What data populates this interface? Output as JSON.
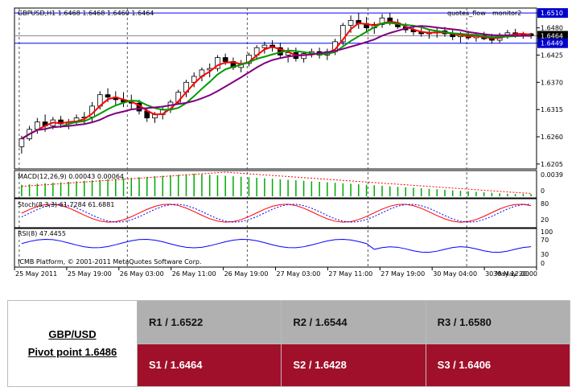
{
  "chart_data": {
    "type": "candlestick",
    "symbol_header": "GBPUSD,H1  1.6468 1.6468 1.6460 1.6464",
    "indicator_labels": [
      "quotes_flow",
      "monitor2"
    ],
    "watermark": "ICMB Platform, © 2001-2011 MetaQuotes Software Corp.",
    "ylim": [
      1.6195,
      1.652
    ],
    "y_ticks": [
      "1.6510",
      "1.6480",
      "1.6464",
      "1.6449",
      "1.6425",
      "1.6370",
      "1.6315",
      "1.6260",
      "1.6205"
    ],
    "y_tick_values": [
      1.651,
      1.648,
      1.6464,
      1.6449,
      1.6425,
      1.637,
      1.6315,
      1.626,
      1.6205
    ],
    "highlight_levels": [
      1.651,
      1.6449
    ],
    "current_price": 1.6464,
    "x_ticks": [
      "25 May 2011",
      "25 May 19:00",
      "26 May 03:00",
      "26 May 11:00",
      "26 May 19:00",
      "27 May 03:00",
      "27 May 11:00",
      "27 May 19:00",
      "30 May 04:00",
      "30 May 12:00",
      "30 May 20:00"
    ],
    "candles": [
      [
        1.624,
        1.6262,
        1.6226,
        1.6256
      ],
      [
        1.6256,
        1.6282,
        1.6252,
        1.6275
      ],
      [
        1.6275,
        1.6298,
        1.6266,
        1.629
      ],
      [
        1.629,
        1.6305,
        1.627,
        1.6282
      ],
      [
        1.6282,
        1.63,
        1.6275,
        1.6294
      ],
      [
        1.6294,
        1.6302,
        1.6278,
        1.6286
      ],
      [
        1.6286,
        1.6296,
        1.6275,
        1.6289
      ],
      [
        1.6289,
        1.6305,
        1.6283,
        1.6298
      ],
      [
        1.6298,
        1.631,
        1.6285,
        1.63
      ],
      [
        1.63,
        1.633,
        1.629,
        1.6322
      ],
      [
        1.6322,
        1.6352,
        1.6315,
        1.6345
      ],
      [
        1.6345,
        1.6358,
        1.633,
        1.634
      ],
      [
        1.634,
        1.6352,
        1.6325,
        1.6335
      ],
      [
        1.6335,
        1.635,
        1.632,
        1.633
      ],
      [
        1.633,
        1.6345,
        1.6315,
        1.6328
      ],
      [
        1.6328,
        1.6335,
        1.6305,
        1.6312
      ],
      [
        1.6312,
        1.6318,
        1.629,
        1.6298
      ],
      [
        1.6298,
        1.631,
        1.6288,
        1.6305
      ],
      [
        1.6305,
        1.632,
        1.6295,
        1.6315
      ],
      [
        1.6315,
        1.6335,
        1.6308,
        1.633
      ],
      [
        1.633,
        1.6355,
        1.6325,
        1.635
      ],
      [
        1.635,
        1.6375,
        1.634,
        1.637
      ],
      [
        1.637,
        1.639,
        1.636,
        1.6382
      ],
      [
        1.6382,
        1.64,
        1.6372,
        1.6395
      ],
      [
        1.6395,
        1.6408,
        1.638,
        1.6398
      ],
      [
        1.6398,
        1.6425,
        1.6392,
        1.642
      ],
      [
        1.642,
        1.6428,
        1.6405,
        1.6412
      ],
      [
        1.6412,
        1.642,
        1.6395,
        1.64
      ],
      [
        1.64,
        1.6415,
        1.639,
        1.6408
      ],
      [
        1.6408,
        1.643,
        1.6402,
        1.6425
      ],
      [
        1.6425,
        1.6445,
        1.6415,
        1.644
      ],
      [
        1.644,
        1.6452,
        1.6428,
        1.6445
      ],
      [
        1.6445,
        1.6455,
        1.6432,
        1.644
      ],
      [
        1.644,
        1.645,
        1.642,
        1.6425
      ],
      [
        1.6425,
        1.644,
        1.641,
        1.643
      ],
      [
        1.643,
        1.644,
        1.6412,
        1.6418
      ],
      [
        1.6418,
        1.6432,
        1.641,
        1.6428
      ],
      [
        1.6428,
        1.6438,
        1.642,
        1.6432
      ],
      [
        1.6432,
        1.644,
        1.6418,
        1.6425
      ],
      [
        1.6425,
        1.6438,
        1.6415,
        1.6432
      ],
      [
        1.6432,
        1.6458,
        1.6425,
        1.6452
      ],
      [
        1.6452,
        1.649,
        1.6445,
        1.6485
      ],
      [
        1.6485,
        1.6505,
        1.647,
        1.6495
      ],
      [
        1.6495,
        1.651,
        1.6478,
        1.6488
      ],
      [
        1.6488,
        1.6502,
        1.647,
        1.648
      ],
      [
        1.648,
        1.6492,
        1.6468,
        1.6487
      ],
      [
        1.6487,
        1.6508,
        1.648,
        1.65
      ],
      [
        1.65,
        1.651,
        1.6485,
        1.649
      ],
      [
        1.649,
        1.6498,
        1.6478,
        1.6482
      ],
      [
        1.6482,
        1.649,
        1.647,
        1.6476
      ],
      [
        1.6476,
        1.6484,
        1.6465,
        1.6472
      ],
      [
        1.6472,
        1.648,
        1.6462,
        1.6468
      ],
      [
        1.6468,
        1.6478,
        1.6458,
        1.647
      ],
      [
        1.647,
        1.648,
        1.646,
        1.6474
      ],
      [
        1.6474,
        1.6482,
        1.6462,
        1.6468
      ],
      [
        1.6468,
        1.6476,
        1.6455,
        1.6462
      ],
      [
        1.6462,
        1.6472,
        1.645,
        1.6466
      ],
      [
        1.6466,
        1.6474,
        1.6456,
        1.646
      ],
      [
        1.646,
        1.647,
        1.6452,
        1.6465
      ],
      [
        1.6465,
        1.6472,
        1.6455,
        1.6458
      ],
      [
        1.6458,
        1.6468,
        1.6448,
        1.6455
      ],
      [
        1.6455,
        1.647,
        1.645,
        1.6466
      ],
      [
        1.6466,
        1.6476,
        1.6458,
        1.647
      ],
      [
        1.647,
        1.6478,
        1.646,
        1.6466
      ],
      [
        1.6466,
        1.6472,
        1.6458,
        1.6468
      ],
      [
        1.6468,
        1.647,
        1.6458,
        1.6464
      ]
    ],
    "macd_label": "MACD(12,26,9) 0.00043 0.00064",
    "macd_ticks": [
      "0.0039",
      "0"
    ],
    "stoch_label": "Stoch(8,3,3) 61.7284 61.6881",
    "stoch_ticks": [
      "80",
      "20"
    ],
    "rsi_label": "RSI(8) 47.4455",
    "rsi_ticks": [
      "100",
      "70",
      "30",
      "0"
    ],
    "colors": {
      "up_candle": "#ffffff",
      "down_candle": "#000000",
      "ma_fast": "#ff0000",
      "ma_mid": "#009900",
      "ma_slow": "#800080",
      "macd_bar": "#00aa00",
      "macd_signal": "#ff0000",
      "stoch_main": "#ff0000",
      "stoch_signal": "#0000ff",
      "rsi": "#0000ff",
      "level": "#0000ff"
    }
  },
  "pivot": {
    "pair": "GBP/USD",
    "pivot_point": "Pivot point 1.6486",
    "r1": "R1 / 1.6522",
    "r2": "R2 / 1.6544",
    "r3": "R3 / 1.6580",
    "s1": "S1 / 1.6464",
    "s2": "S2 / 1.6428",
    "s3": "S3 / 1.6406"
  }
}
